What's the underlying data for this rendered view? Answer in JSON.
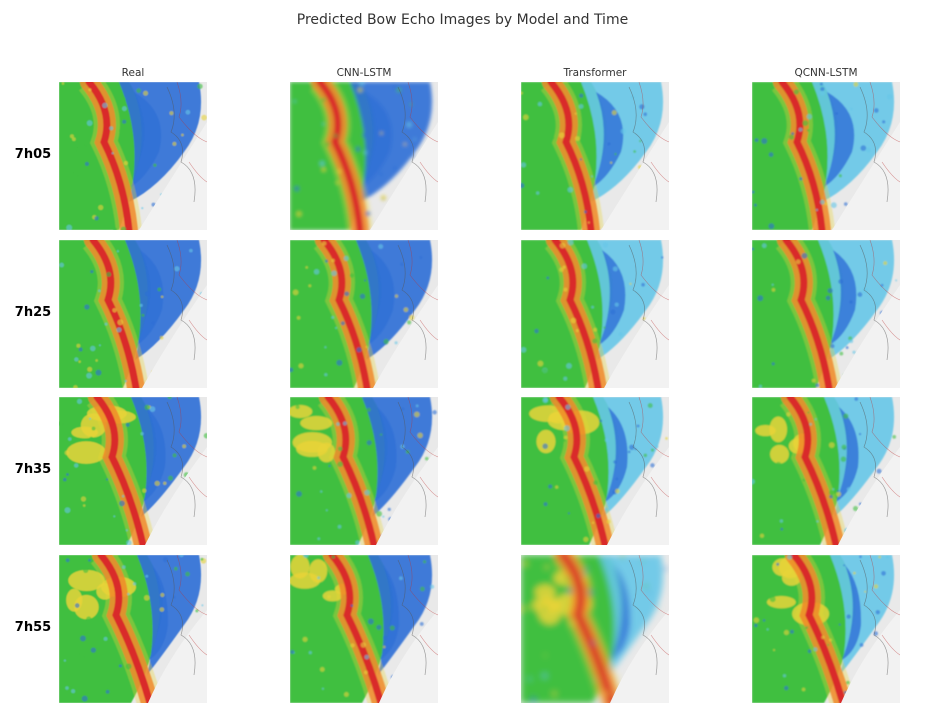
{
  "figure": {
    "title": "Predicted Bow Echo Images by Model and Time",
    "columns": [
      "Real",
      "CNN-LSTM",
      "Transformer",
      "QCNN-LSTM"
    ],
    "rows": [
      "7h05",
      "7h25",
      "7h35",
      "7h55"
    ]
  },
  "colors": {
    "background_map": "#e9e9e9",
    "green": "#3fbf3f",
    "blue": "#2f6fd6",
    "cyan": "#66c7e8",
    "yellow": "#e8d33a",
    "orange": "#f08a2a",
    "red": "#d92b2b"
  }
}
